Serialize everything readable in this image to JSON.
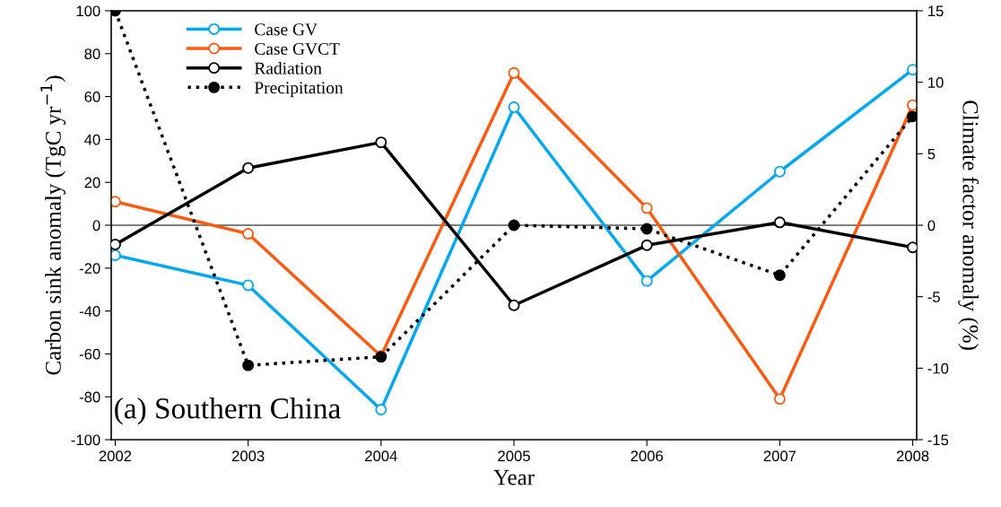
{
  "chart_data": {
    "type": "line",
    "xlabel": "Year",
    "ylabel": "Carbon sink anomaly (TgC yr$^{−1}$)",
    "y2label": "Climate factor anomaly (%)",
    "x": [
      2002,
      2003,
      2004,
      2005,
      2006,
      2007,
      2008
    ],
    "xlim": [
      2001.97,
      2008.03
    ],
    "xticks": [
      2002,
      2003,
      2004,
      2005,
      2006,
      2007,
      2008
    ],
    "ylim": [
      -100,
      100
    ],
    "yticks": [
      -100,
      -80,
      -60,
      -40,
      -20,
      0,
      20,
      40,
      60,
      80,
      100
    ],
    "y2lim": [
      -15,
      15
    ],
    "y2ticks": [
      -15,
      -10,
      -5,
      0,
      5,
      10,
      15
    ],
    "series": [
      {
        "name": "Case GV",
        "color": "#00a8f0",
        "values": [
          -14,
          -28,
          -86,
          55,
          -26,
          25,
          72.5
        ],
        "marker": "circle",
        "line_style": "solid"
      },
      {
        "name": "Case GVCT",
        "color": "#ff5a10",
        "values": [
          11,
          -4,
          -61,
          71,
          8,
          -81,
          56
        ],
        "marker": "circle",
        "line_style": "solid"
      },
      {
        "name": "Radiation",
        "color": "#000000",
        "values": [
          -1.35,
          4.0,
          5.8,
          -5.6,
          -1.4,
          0.2,
          -1.55
        ],
        "axis": "y2",
        "marker": "circle",
        "line_style": "solid"
      },
      {
        "name": "Precipitation",
        "color": "#000000",
        "values": [
          15,
          -9.8,
          -9.2,
          0,
          -0.25,
          -3.5,
          7.6
        ],
        "axis": "y2",
        "marker": "circle",
        "line_style": "dotted"
      }
    ],
    "ref_lines": [
      {
        "axis": "y",
        "value": 0,
        "color": "#555555"
      }
    ],
    "annotations": [
      "(a) Southern China"
    ],
    "legend": "top left",
    "grid": false
  }
}
